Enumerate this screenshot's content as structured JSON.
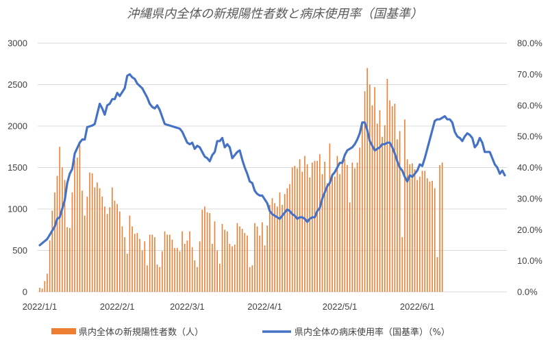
{
  "chart_data": {
    "type": "bar",
    "title": "沖縄県内全体の新規陽性者数と病床使用率（国基準）",
    "x_tick_labels": [
      "2022/1/1",
      "2022/2/1",
      "2022/3/1",
      "2022/4/1",
      "2022/5/1",
      "2022/6/1"
    ],
    "y_left_ticks": [
      "0",
      "500",
      "1000",
      "1500",
      "2000",
      "2500",
      "3000"
    ],
    "y_right_ticks": [
      "0.0%",
      "10.0%",
      "20.0%",
      "30.0%",
      "40.0%",
      "50.0%",
      "60.0%",
      "70.0%",
      "80.0%"
    ],
    "ylim_left": [
      0,
      3000
    ],
    "ylim_right": [
      0,
      80
    ],
    "x_start": "2022-01-01",
    "grid": true,
    "legend_position": "bottom",
    "colors": {
      "bars": "#ed7d31",
      "line": "#4472c4"
    },
    "series": [
      {
        "name": "県内全体の新規陽性者数（人）",
        "type": "bar",
        "axis": "left",
        "values": [
          50,
          40,
          130,
          220,
          620,
          980,
          1200,
          1400,
          1750,
          1500,
          1350,
          780,
          770,
          1200,
          1590,
          1620,
          1820,
          1220,
          920,
          1150,
          1440,
          1430,
          1260,
          1320,
          1250,
          1150,
          1030,
          940,
          1020,
          1260,
          1100,
          1060,
          970,
          790,
          660,
          460,
          920,
          790,
          700,
          710,
          640,
          500,
          610,
          320,
          690,
          690,
          660,
          330,
          300,
          490,
          730,
          690,
          690,
          630,
          530,
          530,
          490,
          730,
          580,
          620,
          730,
          540,
          380,
          300,
          610,
          990,
          1030,
          960,
          950,
          580,
          850,
          500,
          340,
          820,
          750,
          730,
          580,
          550,
          570,
          830,
          790,
          760,
          710,
          680,
          300,
          320,
          830,
          790,
          680,
          840,
          560,
          800,
          1050,
          1130,
          1070,
          1030,
          1200,
          1050,
          1180,
          1250,
          1300,
          1500,
          1520,
          1490,
          1600,
          1450,
          1640,
          1540,
          1380,
          1560,
          1580,
          1580,
          1660,
          1420,
          1570,
          1310,
          1790,
          1430,
          1390,
          1640,
          1420,
          1590,
          1600,
          1530,
          1080,
          1560,
          1490,
          1560,
          1740,
          2050,
          2420,
          2700,
          2500,
          2250,
          2470,
          2030,
          2190,
          1870,
          2010,
          2570,
          2310,
          2240,
          2270,
          1840,
          1940,
          660,
          2080,
          1600,
          1540,
          1550,
          1480,
          1350,
          1390,
          1460,
          1460,
          1370,
          1330,
          1340,
          1250,
          420,
          1530,
          1560
        ]
      },
      {
        "name": "県内全体の病床使用率（国基準）（%）",
        "type": "line",
        "axis": "right",
        "points": [
          [
            0,
            15
          ],
          [
            3,
            17
          ],
          [
            6,
            21
          ],
          [
            7,
            23.5
          ],
          [
            8,
            24
          ],
          [
            10,
            29.5
          ],
          [
            11,
            35
          ],
          [
            12,
            38
          ],
          [
            13,
            39.5
          ],
          [
            14,
            44.5
          ],
          [
            16,
            48
          ],
          [
            17,
            49
          ],
          [
            18,
            49
          ],
          [
            19,
            53
          ],
          [
            21,
            53.5
          ],
          [
            22,
            54
          ],
          [
            24,
            60.5
          ],
          [
            25,
            59
          ],
          [
            26,
            57
          ],
          [
            27,
            60
          ],
          [
            28,
            60.5
          ],
          [
            29,
            62
          ],
          [
            30,
            62
          ],
          [
            31,
            64
          ],
          [
            32,
            63
          ],
          [
            34,
            65.5
          ],
          [
            35,
            69.5
          ],
          [
            36,
            70
          ],
          [
            37,
            69
          ],
          [
            38,
            68.5
          ],
          [
            39,
            67
          ],
          [
            41,
            65.5
          ],
          [
            42,
            64
          ],
          [
            43,
            62.5
          ],
          [
            44,
            60.5
          ],
          [
            45,
            59.5
          ],
          [
            46,
            59
          ],
          [
            47,
            60
          ],
          [
            48,
            58.5
          ],
          [
            50,
            54
          ],
          [
            54,
            53
          ],
          [
            56,
            52.5
          ],
          [
            57,
            51.5
          ],
          [
            59,
            48
          ],
          [
            60,
            47.5
          ],
          [
            61,
            48
          ],
          [
            62,
            46
          ],
          [
            63,
            47
          ],
          [
            64,
            46.5
          ],
          [
            65,
            45
          ],
          [
            66,
            43.5
          ],
          [
            67,
            43
          ],
          [
            68,
            42
          ],
          [
            69,
            44
          ],
          [
            70,
            45
          ],
          [
            71,
            48.5
          ],
          [
            72,
            48.5
          ],
          [
            73,
            49.5
          ],
          [
            74,
            46.5
          ],
          [
            75,
            47.5
          ],
          [
            76,
            46.5
          ],
          [
            77,
            43
          ],
          [
            78,
            44
          ],
          [
            79,
            45
          ],
          [
            80,
            45.5
          ],
          [
            81,
            42.5
          ],
          [
            82,
            40
          ],
          [
            83,
            38
          ],
          [
            84,
            35.5
          ],
          [
            85,
            35
          ],
          [
            86,
            32.5
          ],
          [
            87,
            31.5
          ],
          [
            88,
            31
          ],
          [
            89,
            31
          ],
          [
            91,
            28.5
          ],
          [
            92,
            26
          ],
          [
            93,
            25
          ],
          [
            94,
            24.5
          ],
          [
            95,
            24
          ],
          [
            96,
            23.5
          ],
          [
            97,
            24.5
          ],
          [
            98,
            25.5
          ],
          [
            99,
            26.5
          ],
          [
            100,
            26
          ],
          [
            101,
            25
          ],
          [
            102,
            24.5
          ],
          [
            103,
            23.5
          ],
          [
            104,
            24
          ],
          [
            105,
            24
          ],
          [
            106,
            23.5
          ],
          [
            107,
            22.5
          ],
          [
            108,
            23.5
          ],
          [
            109,
            24
          ],
          [
            110,
            24
          ],
          [
            111,
            26
          ],
          [
            112,
            27
          ],
          [
            113,
            30
          ],
          [
            114,
            32
          ],
          [
            115,
            34
          ],
          [
            116,
            35
          ],
          [
            117,
            37.5
          ],
          [
            118,
            38.5
          ],
          [
            119,
            40
          ],
          [
            120,
            41.5
          ],
          [
            121,
            41.5
          ],
          [
            122,
            44
          ],
          [
            123,
            45.5
          ],
          [
            124,
            46
          ],
          [
            125,
            46.5
          ],
          [
            126,
            47.5
          ],
          [
            127,
            49
          ],
          [
            128,
            51
          ],
          [
            129,
            54.5
          ],
          [
            130,
            54.5
          ],
          [
            131,
            52
          ],
          [
            132,
            48.5
          ],
          [
            133,
            47
          ],
          [
            134,
            45.5
          ],
          [
            135,
            46
          ],
          [
            136,
            46.5
          ],
          [
            137,
            47.5
          ],
          [
            138,
            47.5
          ],
          [
            139,
            48
          ],
          [
            140,
            48
          ],
          [
            141,
            46.5
          ],
          [
            142,
            44.5
          ],
          [
            143,
            42
          ],
          [
            144,
            40
          ],
          [
            145,
            39
          ],
          [
            146,
            37
          ],
          [
            147,
            35.5
          ],
          [
            148,
            37.5
          ],
          [
            149,
            37
          ],
          [
            150,
            38
          ],
          [
            151,
            39
          ],
          [
            152,
            41
          ],
          [
            153,
            40.5
          ],
          [
            154,
            43
          ],
          [
            155,
            46
          ],
          [
            156,
            49
          ],
          [
            157,
            52
          ],
          [
            158,
            55
          ],
          [
            159,
            55.5
          ],
          [
            160,
            55.5
          ],
          [
            161,
            56
          ],
          [
            162,
            56.5
          ],
          [
            163,
            55.5
          ],
          [
            164,
            55.5
          ],
          [
            165,
            54.5
          ],
          [
            166,
            51.5
          ],
          [
            167,
            50
          ],
          [
            168,
            49.5
          ],
          [
            169,
            48.5
          ],
          [
            170,
            50
          ],
          [
            171,
            51
          ],
          [
            172,
            50.5
          ],
          [
            173,
            49.5
          ],
          [
            174,
            46.5
          ],
          [
            175,
            47.5
          ],
          [
            176,
            49.5
          ],
          [
            177,
            48
          ],
          [
            178,
            45
          ],
          [
            179,
            45
          ],
          [
            180,
            45
          ],
          [
            181,
            43
          ],
          [
            182,
            41
          ],
          [
            183,
            40
          ],
          [
            184,
            38
          ],
          [
            185,
            39
          ],
          [
            186,
            37.5
          ]
        ]
      }
    ]
  }
}
